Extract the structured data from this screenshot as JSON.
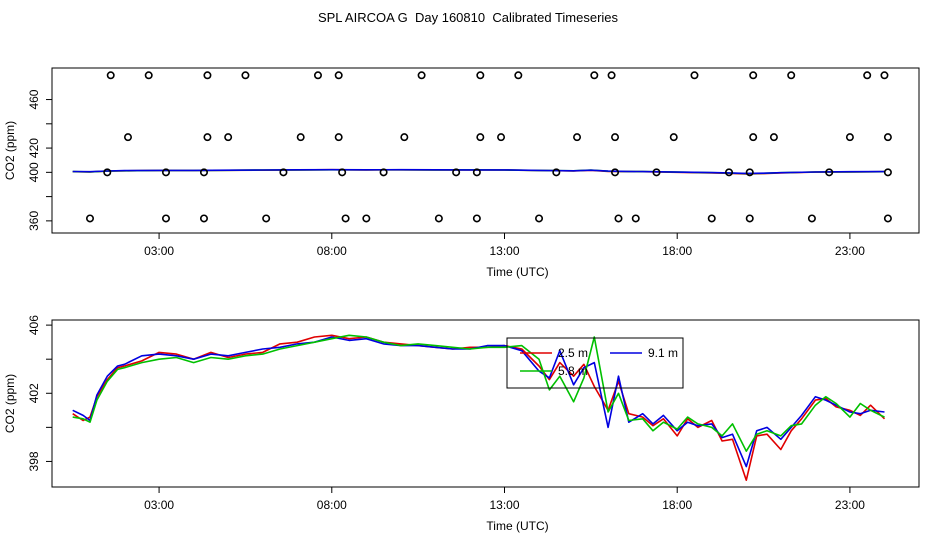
{
  "title": "SPL AIRCOA G  Day 160810  Calibrated Timeseries",
  "colors": {
    "red": "#e00000",
    "green": "#00c000",
    "blue": "#0000e0",
    "frame": "#000000"
  },
  "chart_data": [
    {
      "type": "scatter",
      "xlabel": "Time (UTC)",
      "ylabel": "CO2 (ppm)",
      "xlim": [
        -0.1,
        25.0
      ],
      "ylim": [
        350,
        486
      ],
      "x_ticks": [
        3,
        8,
        13,
        18,
        23
      ],
      "x_tick_labels": [
        "03:00",
        "08:00",
        "13:00",
        "18:00",
        "23:00"
      ],
      "y_ticks": [
        360,
        380,
        400,
        420,
        440,
        460
      ],
      "y_tick_labels": [
        "360",
        "",
        "400",
        "420",
        "",
        "460"
      ],
      "legend": false,
      "points": [
        {
          "x": 1.0,
          "y": 362
        },
        {
          "x": 1.5,
          "y": 400
        },
        {
          "x": 1.6,
          "y": 480
        },
        {
          "x": 2.1,
          "y": 429
        },
        {
          "x": 2.7,
          "y": 480
        },
        {
          "x": 3.2,
          "y": 362
        },
        {
          "x": 3.2,
          "y": 400
        },
        {
          "x": 4.3,
          "y": 362
        },
        {
          "x": 4.3,
          "y": 400
        },
        {
          "x": 4.4,
          "y": 429
        },
        {
          "x": 4.4,
          "y": 480
        },
        {
          "x": 5.0,
          "y": 429
        },
        {
          "x": 5.5,
          "y": 480
        },
        {
          "x": 6.1,
          "y": 362
        },
        {
          "x": 6.6,
          "y": 400
        },
        {
          "x": 7.1,
          "y": 429
        },
        {
          "x": 7.6,
          "y": 480
        },
        {
          "x": 8.2,
          "y": 480
        },
        {
          "x": 8.2,
          "y": 429
        },
        {
          "x": 8.3,
          "y": 400
        },
        {
          "x": 8.4,
          "y": 362
        },
        {
          "x": 9.0,
          "y": 362
        },
        {
          "x": 9.5,
          "y": 400
        },
        {
          "x": 10.1,
          "y": 429
        },
        {
          "x": 10.6,
          "y": 480
        },
        {
          "x": 11.1,
          "y": 362
        },
        {
          "x": 11.6,
          "y": 400
        },
        {
          "x": 12.2,
          "y": 362
        },
        {
          "x": 12.2,
          "y": 400
        },
        {
          "x": 12.3,
          "y": 429
        },
        {
          "x": 12.3,
          "y": 480
        },
        {
          "x": 12.9,
          "y": 429
        },
        {
          "x": 13.4,
          "y": 480
        },
        {
          "x": 14.0,
          "y": 362
        },
        {
          "x": 14.5,
          "y": 400
        },
        {
          "x": 15.1,
          "y": 429
        },
        {
          "x": 15.6,
          "y": 480
        },
        {
          "x": 16.1,
          "y": 480
        },
        {
          "x": 16.2,
          "y": 429
        },
        {
          "x": 16.2,
          "y": 400
        },
        {
          "x": 16.3,
          "y": 362
        },
        {
          "x": 16.8,
          "y": 362
        },
        {
          "x": 17.4,
          "y": 400
        },
        {
          "x": 17.9,
          "y": 429
        },
        {
          "x": 18.5,
          "y": 480
        },
        {
          "x": 19.0,
          "y": 362
        },
        {
          "x": 19.5,
          "y": 400
        },
        {
          "x": 20.1,
          "y": 362
        },
        {
          "x": 20.1,
          "y": 400
        },
        {
          "x": 20.2,
          "y": 429
        },
        {
          "x": 20.2,
          "y": 480
        },
        {
          "x": 20.8,
          "y": 429
        },
        {
          "x": 21.3,
          "y": 480
        },
        {
          "x": 21.9,
          "y": 362
        },
        {
          "x": 22.4,
          "y": 400
        },
        {
          "x": 23.0,
          "y": 429
        },
        {
          "x": 23.5,
          "y": 480
        },
        {
          "x": 24.0,
          "y": 480
        },
        {
          "x": 24.1,
          "y": 429
        },
        {
          "x": 24.1,
          "y": 400
        },
        {
          "x": 24.1,
          "y": 362
        }
      ],
      "series": [
        {
          "color": "#e00000",
          "x": [
            0.5,
            1,
            1.5,
            2,
            3,
            4,
            5,
            6,
            7,
            8,
            9,
            10,
            11,
            12,
            13,
            14,
            15,
            15.5,
            16,
            16.5,
            17,
            18,
            19,
            19.5,
            20,
            20.5,
            21,
            22,
            23,
            24
          ],
          "values": [
            400.5,
            400.3,
            401.0,
            401.3,
            401.6,
            401.5,
            401.7,
            401.8,
            402.0,
            402.2,
            402.0,
            402.1,
            402.0,
            402.0,
            401.9,
            401.5,
            401.2,
            401.7,
            400.8,
            400.6,
            400.5,
            400.0,
            399.5,
            399.2,
            398.7,
            399.0,
            399.5,
            400.2,
            400.4,
            400.5
          ]
        },
        {
          "color": "#00c000",
          "x": [
            0.5,
            1,
            1.5,
            2,
            3,
            4,
            5,
            6,
            7,
            8,
            9,
            10,
            11,
            12,
            13,
            14,
            15,
            15.5,
            16,
            16.5,
            17,
            18,
            19,
            19.5,
            20,
            20.5,
            21,
            22,
            23,
            24
          ],
          "values": [
            400.6,
            400.4,
            401.0,
            401.3,
            401.5,
            401.5,
            401.7,
            401.9,
            402.0,
            402.1,
            402.1,
            402.1,
            402.0,
            402.1,
            401.9,
            401.6,
            401.3,
            401.9,
            400.9,
            400.7,
            400.6,
            400.2,
            399.7,
            399.4,
            399.0,
            399.2,
            399.7,
            400.3,
            400.4,
            400.5
          ]
        },
        {
          "color": "#0000e0",
          "x": [
            0.5,
            1,
            1.5,
            2,
            3,
            4,
            5,
            6,
            7,
            8,
            9,
            10,
            11,
            12,
            13,
            14,
            15,
            15.5,
            16,
            16.5,
            17,
            18,
            19,
            19.5,
            20,
            20.5,
            21,
            22,
            23,
            24
          ],
          "values": [
            400.7,
            400.5,
            401.1,
            401.4,
            401.6,
            401.6,
            401.8,
            401.9,
            402.1,
            402.2,
            402.1,
            402.2,
            402.1,
            402.0,
            402.0,
            401.6,
            401.3,
            401.8,
            401.0,
            400.8,
            400.6,
            400.2,
            399.8,
            399.5,
            399.1,
            399.3,
            399.7,
            400.3,
            400.5,
            400.6
          ]
        }
      ]
    },
    {
      "type": "line",
      "xlabel": "Time (UTC)",
      "ylabel": "CO2 (ppm)",
      "xlim": [
        -0.1,
        25.0
      ],
      "ylim": [
        396.5,
        406.3
      ],
      "x_ticks": [
        3,
        8,
        13,
        18,
        23
      ],
      "x_tick_labels": [
        "03:00",
        "08:00",
        "13:00",
        "18:00",
        "23:00"
      ],
      "y_ticks": [
        398,
        400,
        402,
        404,
        406
      ],
      "y_tick_labels": [
        "398",
        "",
        "402",
        "",
        "406"
      ],
      "legend_position": "top-center-right",
      "series": [
        {
          "name": "2.5 m",
          "color": "#e00000",
          "x": [
            0.5,
            0.8,
            1.0,
            1.2,
            1.5,
            1.8,
            2.0,
            2.5,
            3.0,
            3.5,
            4.0,
            4.5,
            5.0,
            5.5,
            6.0,
            6.5,
            7.0,
            7.5,
            8.0,
            8.5,
            9.0,
            9.5,
            10.0,
            10.5,
            11.0,
            11.5,
            12.0,
            12.5,
            13.0,
            13.5,
            14.0,
            14.3,
            14.6,
            15.0,
            15.3,
            15.6,
            16.0,
            16.3,
            16.6,
            17.0,
            17.3,
            17.6,
            18.0,
            18.3,
            18.6,
            19.0,
            19.3,
            19.6,
            20.0,
            20.3,
            20.6,
            21.0,
            21.3,
            21.6,
            22.0,
            22.3,
            22.6,
            23.0,
            23.3,
            23.6,
            24.0
          ],
          "values": [
            400.8,
            400.4,
            400.6,
            401.8,
            402.8,
            403.5,
            403.6,
            403.9,
            404.4,
            404.3,
            404.0,
            404.4,
            404.1,
            404.3,
            404.4,
            404.9,
            405.0,
            405.3,
            405.4,
            405.2,
            405.3,
            405.0,
            404.9,
            404.8,
            404.7,
            404.6,
            404.7,
            404.7,
            404.8,
            404.6,
            403.6,
            402.8,
            403.8,
            403.0,
            403.7,
            402.4,
            401.0,
            402.7,
            400.8,
            400.6,
            400.1,
            400.5,
            399.5,
            400.5,
            400.0,
            400.4,
            399.2,
            399.3,
            396.9,
            399.5,
            399.6,
            398.7,
            399.8,
            400.5,
            401.6,
            401.7,
            401.2,
            401.0,
            400.7,
            401.3,
            400.5
          ]
        },
        {
          "name": "9.1 m",
          "color": "#0000e0",
          "x": [
            0.5,
            0.8,
            1.0,
            1.2,
            1.5,
            1.8,
            2.0,
            2.5,
            3.0,
            3.5,
            4.0,
            4.5,
            5.0,
            5.5,
            6.0,
            6.5,
            7.0,
            7.5,
            8.0,
            8.5,
            9.0,
            9.5,
            10.0,
            10.5,
            11.0,
            11.5,
            12.0,
            12.5,
            13.0,
            13.5,
            14.0,
            14.3,
            14.6,
            15.0,
            15.3,
            15.6,
            16.0,
            16.3,
            16.6,
            17.0,
            17.3,
            17.6,
            18.0,
            18.3,
            18.6,
            19.0,
            19.3,
            19.6,
            20.0,
            20.3,
            20.6,
            21.0,
            21.3,
            21.6,
            22.0,
            22.3,
            22.6,
            23.0,
            23.3,
            23.6,
            24.0
          ],
          "values": [
            401.0,
            400.7,
            400.4,
            401.9,
            403.0,
            403.6,
            403.7,
            404.2,
            404.3,
            404.2,
            404.0,
            404.3,
            404.2,
            404.4,
            404.6,
            404.7,
            404.9,
            405.0,
            405.3,
            405.1,
            405.2,
            404.9,
            404.8,
            404.8,
            404.7,
            404.6,
            404.6,
            404.8,
            404.8,
            404.5,
            403.3,
            402.9,
            404.5,
            402.5,
            403.5,
            403.8,
            400.0,
            403.0,
            400.3,
            400.8,
            400.2,
            400.7,
            399.8,
            400.3,
            400.1,
            400.2,
            399.4,
            399.6,
            397.7,
            399.8,
            400.0,
            399.3,
            400.0,
            400.7,
            401.8,
            401.6,
            401.3,
            400.9,
            400.8,
            401.0,
            400.9
          ]
        },
        {
          "name": "5.8 m",
          "color": "#00c000",
          "x": [
            0.5,
            0.8,
            1.0,
            1.2,
            1.5,
            1.8,
            2.0,
            2.5,
            3.0,
            3.5,
            4.0,
            4.5,
            5.0,
            5.5,
            6.0,
            6.5,
            7.0,
            7.5,
            8.0,
            8.5,
            9.0,
            9.5,
            10.0,
            10.5,
            11.0,
            11.5,
            12.0,
            12.5,
            13.0,
            13.5,
            14.0,
            14.3,
            14.6,
            15.0,
            15.3,
            15.6,
            16.0,
            16.3,
            16.6,
            17.0,
            17.3,
            17.6,
            18.0,
            18.3,
            18.6,
            19.0,
            19.3,
            19.6,
            20.0,
            20.3,
            20.6,
            21.0,
            21.3,
            21.6,
            22.0,
            22.3,
            22.6,
            23.0,
            23.3,
            23.6,
            24.0
          ],
          "values": [
            400.6,
            400.5,
            400.3,
            401.6,
            402.7,
            403.4,
            403.5,
            403.8,
            404.0,
            404.1,
            403.8,
            404.1,
            404.0,
            404.2,
            404.3,
            404.6,
            404.8,
            405.0,
            405.2,
            405.4,
            405.3,
            405.0,
            404.8,
            404.9,
            404.8,
            404.7,
            404.6,
            404.7,
            404.7,
            404.8,
            404.0,
            402.2,
            403.0,
            401.5,
            402.9,
            405.3,
            400.9,
            402.0,
            400.4,
            400.5,
            399.8,
            400.3,
            399.9,
            400.6,
            400.2,
            400.0,
            399.5,
            400.2,
            398.6,
            399.6,
            399.8,
            399.5,
            400.1,
            400.2,
            401.3,
            401.8,
            401.4,
            400.6,
            401.4,
            401.0,
            400.6
          ]
        }
      ]
    }
  ]
}
